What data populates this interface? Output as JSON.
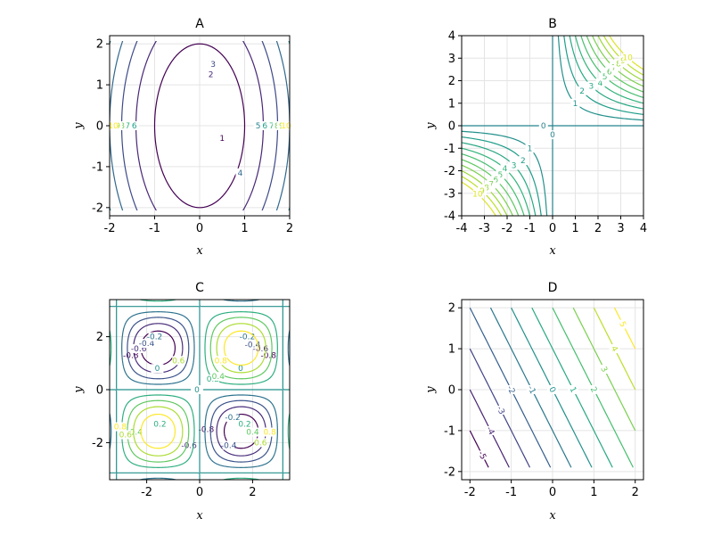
{
  "chart_data": [
    {
      "type": "contour",
      "title": "A",
      "xlabel": "x",
      "ylabel": "y",
      "xlim": [
        -2,
        2
      ],
      "ylim": [
        -2.2,
        2.2
      ],
      "xticks": [
        -2,
        -1,
        0,
        1,
        2
      ],
      "yticks": [
        -2,
        -1,
        0,
        1,
        2
      ],
      "function": "x^2 + 0.25*y^2 (elliptical, levels 1..10)",
      "levels": [
        1,
        2,
        3,
        4,
        5,
        6,
        7,
        8,
        9,
        10
      ],
      "level_labels": [
        "1",
        "2",
        "3",
        "4",
        "5",
        "6",
        "7",
        "8",
        "9",
        "10"
      ]
    },
    {
      "type": "contour",
      "title": "B",
      "xlabel": "x",
      "ylabel": "y",
      "xlim": [
        -4,
        4
      ],
      "ylim": [
        -4,
        4
      ],
      "xticks": [
        -4,
        -3,
        -2,
        -1,
        0,
        1,
        2,
        3,
        4
      ],
      "yticks": [
        -4,
        -3,
        -2,
        -1,
        0,
        1,
        2,
        3,
        4
      ],
      "function": "x*y restricted to same-sign quadrants",
      "levels": [
        0,
        1,
        2,
        3,
        4,
        5,
        6,
        7,
        8,
        9,
        10
      ],
      "level_labels": [
        "0",
        "1",
        "2",
        "3",
        "4",
        "5",
        "6",
        "7",
        "8",
        "9",
        "10"
      ]
    },
    {
      "type": "contour",
      "title": "C",
      "xlabel": "x",
      "ylabel": "y",
      "xlim": [
        -3.4,
        3.4
      ],
      "ylim": [
        -3.4,
        3.4
      ],
      "xticks": [
        -2,
        0,
        2
      ],
      "yticks": [
        -2,
        0,
        2
      ],
      "function": "sin(x)*sin(y)",
      "levels": [
        -0.8,
        -0.6,
        -0.4,
        -0.2,
        0,
        0.2,
        0.4,
        0.6,
        0.8
      ],
      "level_labels": [
        "-0.8",
        "-0.6",
        "-0.4",
        "-0.2",
        "0",
        "0.2",
        "0.4",
        "0.6",
        "0.8"
      ]
    },
    {
      "type": "contour",
      "title": "D",
      "xlabel": "x",
      "ylabel": "y",
      "xlim": [
        -2.2,
        2.2
      ],
      "ylim": [
        -2.2,
        2.2
      ],
      "xticks": [
        -2,
        -1,
        0,
        1,
        2
      ],
      "yticks": [
        -2,
        -1,
        0,
        1,
        2
      ],
      "function": "2*x + y",
      "levels": [
        -5,
        -4,
        -3,
        -2,
        -1,
        0,
        1,
        2,
        3,
        4,
        5
      ],
      "level_labels": [
        "-5",
        "-4",
        "-3",
        "-2",
        "-1",
        "0",
        "1",
        "2",
        "3",
        "4",
        "5"
      ]
    }
  ]
}
